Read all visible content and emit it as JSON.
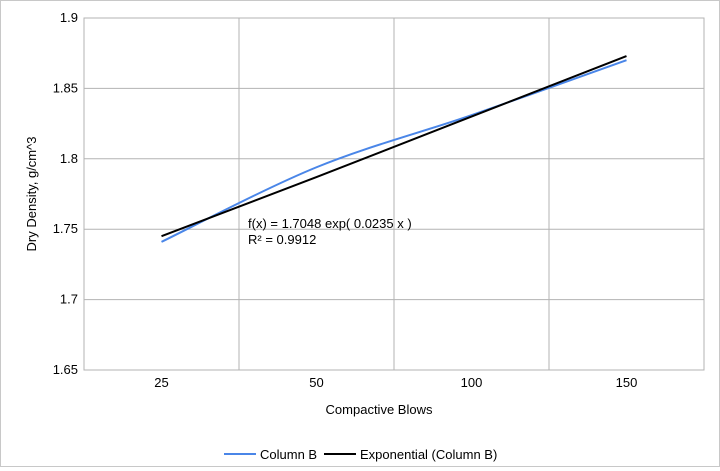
{
  "chart_data": {
    "type": "line",
    "title": "",
    "xlabel": "Compactive Blows",
    "ylabel": "Dry Density, g/cm^3",
    "categories": [
      "25",
      "50",
      "100",
      "150"
    ],
    "ylim": [
      1.65,
      1.9
    ],
    "yticks": [
      "1.65",
      "1.7",
      "1.75",
      "1.8",
      "1.85",
      "1.9"
    ],
    "grid": true,
    "legend_position": "bottom",
    "series": [
      {
        "name": "Column B",
        "values": [
          1.741,
          1.794,
          1.831,
          1.87
        ],
        "color": "#4a86e8",
        "smooth": true
      },
      {
        "name": "Exponential (Column B)",
        "values": [
          1.745,
          1.787,
          1.83,
          1.873
        ],
        "color": "#000000",
        "smooth": false
      }
    ],
    "trendline_label": {
      "equation": "f(x) = 1.7048 exp( 0.0235 x )",
      "r_squared": "R² = 0.9912"
    }
  }
}
